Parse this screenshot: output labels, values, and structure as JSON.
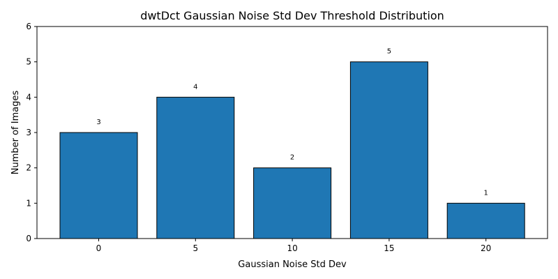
{
  "chart_data": {
    "type": "bar",
    "title": "dwtDct Gaussian Noise Std Dev Threshold Distribution",
    "xlabel": "Gaussian Noise Std Dev",
    "ylabel": "Number of Images",
    "categories": [
      "0",
      "5",
      "10",
      "15",
      "20"
    ],
    "values": [
      3,
      4,
      2,
      5,
      1
    ],
    "ylim": [
      0,
      6
    ],
    "yticks": [
      0,
      1,
      2,
      3,
      4,
      5,
      6
    ],
    "data_labels": [
      "3",
      "4",
      "2",
      "5",
      "1"
    ],
    "grid": false,
    "legend": "none",
    "colors": {
      "bar_fill": "#1f77b4",
      "bar_edge": "#000000",
      "axes": "#000000"
    }
  }
}
